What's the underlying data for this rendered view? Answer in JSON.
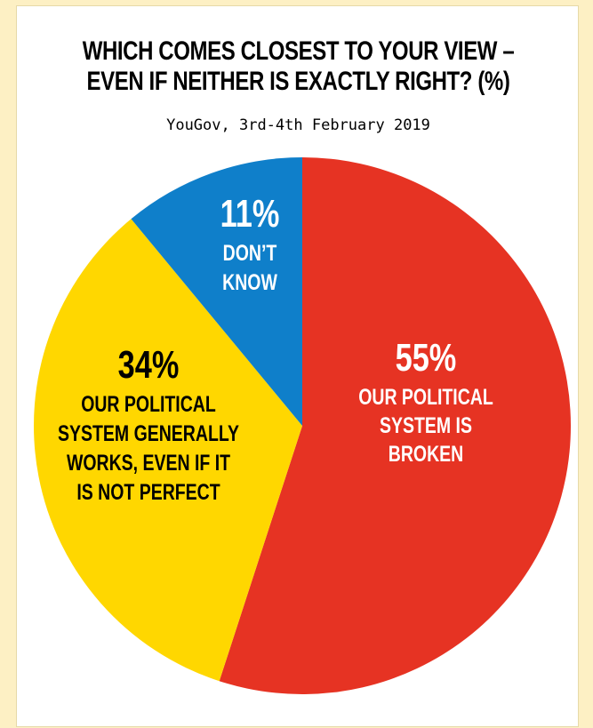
{
  "title_lines": [
    "WHICH COMES CLOSEST TO YOUR VIEW –",
    "EVEN IF NEITHER IS EXACTLY RIGHT? (%)"
  ],
  "subtitle": "YouGov, 3rd-4th February 2019",
  "chart_data": {
    "type": "pie",
    "title": "WHICH COMES CLOSEST TO YOUR VIEW – EVEN IF NEITHER IS EXACTLY RIGHT? (%)",
    "subtitle": "YouGov, 3rd-4th February 2019",
    "slices": [
      {
        "value": 55,
        "pct_label": "55%",
        "text_lines": [
          "OUR POLITICAL",
          "SYSTEM IS",
          "BROKEN"
        ],
        "color": "#e63323",
        "text_color": "#ffffff"
      },
      {
        "value": 34,
        "pct_label": "34%",
        "text_lines": [
          "OUR POLITICAL",
          "SYSTEM GENERALLY",
          "WORKS, EVEN IF IT",
          "IS NOT PERFECT"
        ],
        "color": "#ffd700",
        "text_color": "#000000"
      },
      {
        "value": 11,
        "pct_label": "11%",
        "text_lines": [
          "DON’T",
          "KNOW"
        ],
        "color": "#0f7fca",
        "text_color": "#ffffff"
      }
    ]
  }
}
